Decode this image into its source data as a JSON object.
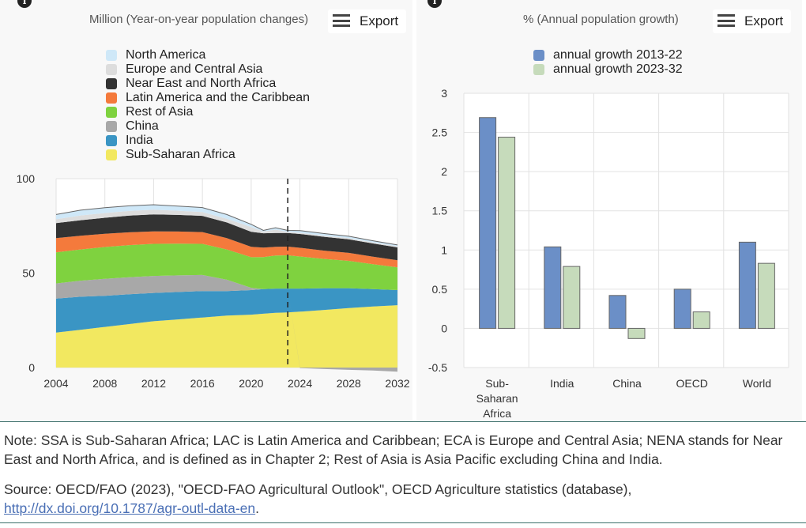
{
  "left_chart": {
    "title": "Million (Year-on-year population changes)",
    "export_label": "Export"
  },
  "right_chart": {
    "title": "% (Annual population growth)",
    "export_label": "Export"
  },
  "note": "Note: SSA is Sub-Saharan Africa; LAC is Latin America and Caribbean; ECA is Europe and Central Asia; NENA stands for Near East and North Africa, and is defined as in Chapter 2; Rest of Asia is Asia Pacific excluding China and India.",
  "source": {
    "text": "Source: OECD/FAO (2023), \"OECD-FAO Agricultural Outlook\", OECD Agriculture statistics (database),",
    "link": "http://dx.doi.org/10.1787/agr-outl-data-en",
    "suffix": "."
  },
  "chart_data": [
    {
      "type": "area",
      "stacked": true,
      "title": "Million (Year-on-year population changes)",
      "xlabel": "",
      "ylabel": "",
      "xlim": [
        2004,
        2032
      ],
      "ylim": [
        0,
        100
      ],
      "x_ticks": [
        2004,
        2008,
        2012,
        2016,
        2020,
        2024,
        2028,
        2032
      ],
      "y_ticks": [
        0,
        50,
        100
      ],
      "grid": true,
      "projection_marker_x": 2023,
      "x": [
        2004,
        2006,
        2008,
        2010,
        2012,
        2014,
        2016,
        2018,
        2020,
        2021,
        2022,
        2023,
        2024,
        2026,
        2028,
        2030,
        2032
      ],
      "series": [
        {
          "name": "Sub-Saharan Africa",
          "color": "#f2e860",
          "values": [
            18.5,
            20,
            21.5,
            23,
            24.5,
            25.5,
            26.5,
            27.5,
            28,
            28.5,
            29,
            29.2,
            29.6,
            30.5,
            31.5,
            32.3,
            33
          ]
        },
        {
          "name": "India",
          "color": "#3a95c4",
          "values": [
            18,
            17.5,
            16.5,
            15.8,
            15,
            14.5,
            14,
            13,
            13,
            13,
            12.8,
            12.6,
            12.2,
            11.5,
            10.5,
            9.2,
            8
          ]
        },
        {
          "name": "China",
          "color": "#a8a8a8",
          "values": [
            8,
            8.5,
            9,
            9,
            9,
            8.8,
            8.5,
            6,
            1.2,
            0,
            0,
            0,
            -0.3,
            -0.8,
            -1.2,
            -1.6,
            -2.2
          ]
        },
        {
          "name": "Rest of Asia",
          "color": "#7fd23f",
          "values": [
            16.5,
            16.5,
            16.8,
            17,
            17,
            16.8,
            16.5,
            16,
            16.2,
            17,
            17.5,
            17.6,
            17,
            15.5,
            14.5,
            13.2,
            12
          ]
        },
        {
          "name": "Latin America and the Caribbean",
          "color": "#f47a3c",
          "values": [
            7.5,
            7.3,
            7,
            6.8,
            6.6,
            6.4,
            6.2,
            6,
            5.5,
            5,
            4.6,
            4.6,
            4.6,
            4.4,
            4.2,
            4,
            3.8
          ]
        },
        {
          "name": "Near East and North Africa",
          "color": "#333333",
          "values": [
            8,
            8.2,
            8.5,
            8.8,
            9,
            8.8,
            8.6,
            8.3,
            8,
            7.6,
            7.3,
            7.2,
            7.3,
            7.3,
            7.2,
            7,
            6.8
          ]
        },
        {
          "name": "Europe and Central Asia",
          "color": "#dddddd",
          "values": [
            2,
            2.5,
            2.5,
            2.5,
            2.5,
            2.2,
            2,
            2,
            2.5,
            0.9,
            1.8,
            0.6,
            0.6,
            0.6,
            0.6,
            0.5,
            0.5
          ]
        },
        {
          "name": "North America",
          "color": "#cfe8f8",
          "values": [
            2.5,
            2.8,
            2.8,
            2.7,
            2.6,
            2.5,
            2.4,
            2.2,
            1.4,
            0.6,
            1,
            0.8,
            1.2,
            1.1,
            1,
            0.9,
            0.8
          ]
        }
      ]
    },
    {
      "type": "bar",
      "title": "% (Annual population growth)",
      "xlabel": "",
      "ylabel": "",
      "categories": [
        "Sub-Saharan Africa",
        "India",
        "China",
        "OECD",
        "World"
      ],
      "ylim": [
        -0.5,
        3
      ],
      "y_ticks": [
        -0.5,
        0,
        0.5,
        1,
        1.5,
        2,
        2.5,
        3
      ],
      "grid": true,
      "series": [
        {
          "name": "annual growth 2013-22",
          "color": "#6b8fc7",
          "values": [
            2.69,
            1.04,
            0.42,
            0.5,
            1.1
          ]
        },
        {
          "name": "annual growth 2023-32",
          "color": "#c6dbbb",
          "values": [
            2.44,
            0.79,
            -0.13,
            0.21,
            0.83
          ]
        }
      ]
    }
  ]
}
